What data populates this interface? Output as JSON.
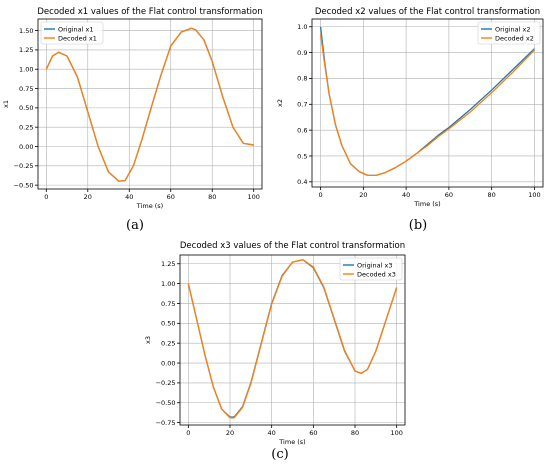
{
  "chart_data": [
    {
      "type": "line",
      "panel": "(a)",
      "title": "Decoded x1 values of the Flat control transformation",
      "xlabel": "Time (s)",
      "ylabel": "x1",
      "xlim": [
        -4,
        104
      ],
      "ylim": [
        -0.55,
        1.65
      ],
      "xticks": [
        0,
        20,
        40,
        60,
        80,
        100
      ],
      "yticks": [
        -0.5,
        -0.25,
        0.0,
        0.25,
        0.5,
        0.75,
        1.0,
        1.25,
        1.5
      ],
      "ytick_labels": [
        "−0.50",
        "−0.25",
        "0.00",
        "0.25",
        "0.50",
        "0.75",
        "1.00",
        "1.25",
        "1.50"
      ],
      "grid": true,
      "legend_position": "top-left",
      "series": [
        {
          "name": "Original x1",
          "color": "#1f77b4",
          "x": [
            0,
            3,
            6,
            10,
            15,
            20,
            25,
            30,
            35,
            38,
            42,
            46,
            50,
            55,
            60,
            65,
            70,
            72,
            76,
            80,
            85,
            90,
            95,
            100
          ],
          "y": [
            1.0,
            1.17,
            1.22,
            1.17,
            0.9,
            0.45,
            0.0,
            -0.33,
            -0.45,
            -0.44,
            -0.25,
            0.08,
            0.45,
            0.9,
            1.3,
            1.48,
            1.53,
            1.51,
            1.38,
            1.1,
            0.65,
            0.25,
            0.04,
            0.02
          ]
        },
        {
          "name": "Decoded x1",
          "color": "#ff7f0e",
          "x": [
            0,
            3,
            6,
            10,
            15,
            20,
            25,
            30,
            35,
            38,
            42,
            46,
            50,
            55,
            60,
            65,
            70,
            72,
            76,
            80,
            85,
            90,
            95,
            100
          ],
          "y": [
            1.0,
            1.17,
            1.22,
            1.17,
            0.9,
            0.45,
            0.0,
            -0.33,
            -0.45,
            -0.44,
            -0.25,
            0.08,
            0.45,
            0.9,
            1.3,
            1.48,
            1.53,
            1.51,
            1.38,
            1.1,
            0.65,
            0.25,
            0.04,
            0.02
          ]
        }
      ]
    },
    {
      "type": "line",
      "panel": "(b)",
      "title": "Decoded x2 values of the Flat control transformation",
      "xlabel": "Time (s)",
      "ylabel": "x2",
      "xlim": [
        -4,
        104
      ],
      "ylim": [
        0.38,
        1.03
      ],
      "xticks": [
        0,
        20,
        40,
        60,
        80,
        100
      ],
      "yticks": [
        0.4,
        0.5,
        0.6,
        0.7,
        0.8,
        0.9,
        1.0
      ],
      "ytick_labels": [
        "0.4",
        "0.5",
        "0.6",
        "0.7",
        "0.8",
        "0.9",
        "1.0"
      ],
      "grid": true,
      "legend_position": "top-right",
      "series": [
        {
          "name": "Original x2",
          "color": "#1f77b4",
          "x": [
            0,
            2,
            4,
            7,
            10,
            14,
            18,
            22,
            26,
            30,
            35,
            40,
            45,
            50,
            55,
            60,
            70,
            80,
            90,
            100
          ],
          "y": [
            1.0,
            0.86,
            0.74,
            0.62,
            0.54,
            0.47,
            0.44,
            0.425,
            0.425,
            0.435,
            0.455,
            0.48,
            0.51,
            0.545,
            0.58,
            0.61,
            0.68,
            0.755,
            0.835,
            0.915
          ]
        },
        {
          "name": "Decoded x2",
          "color": "#ff7f0e",
          "x": [
            0,
            2,
            4,
            7,
            10,
            14,
            18,
            22,
            26,
            30,
            35,
            40,
            45,
            50,
            55,
            60,
            70,
            80,
            90,
            100
          ],
          "y": [
            0.97,
            0.85,
            0.74,
            0.62,
            0.54,
            0.47,
            0.44,
            0.425,
            0.425,
            0.435,
            0.455,
            0.48,
            0.51,
            0.54,
            0.575,
            0.605,
            0.67,
            0.745,
            0.825,
            0.91
          ]
        }
      ]
    },
    {
      "type": "line",
      "panel": "(c)",
      "title": "Decoded x3 values of the Flat control transformation",
      "xlabel": "Time (s)",
      "ylabel": "x3",
      "xlim": [
        -4,
        104
      ],
      "ylim": [
        -0.78,
        1.36
      ],
      "xticks": [
        0,
        20,
        40,
        60,
        80,
        100
      ],
      "yticks": [
        -0.75,
        -0.5,
        -0.25,
        0.0,
        0.25,
        0.5,
        0.75,
        1.0,
        1.25
      ],
      "ytick_labels": [
        "−0.75",
        "−0.50",
        "−0.25",
        "0.00",
        "0.25",
        "0.50",
        "0.75",
        "1.00",
        "1.25"
      ],
      "grid": true,
      "legend_position": "top-right",
      "series": [
        {
          "name": "Original x3",
          "color": "#1f77b4",
          "x": [
            0,
            4,
            8,
            12,
            16,
            20,
            22,
            26,
            30,
            35,
            40,
            45,
            50,
            55,
            60,
            65,
            70,
            75,
            80,
            83,
            86,
            90,
            95,
            100
          ],
          "y": [
            1.0,
            0.55,
            0.1,
            -0.3,
            -0.58,
            -0.68,
            -0.68,
            -0.55,
            -0.25,
            0.25,
            0.75,
            1.1,
            1.27,
            1.3,
            1.2,
            0.95,
            0.55,
            0.15,
            -0.1,
            -0.13,
            -0.08,
            0.15,
            0.55,
            0.95
          ]
        },
        {
          "name": "Decoded x3",
          "color": "#ff7f0e",
          "x": [
            0,
            4,
            8,
            12,
            16,
            20,
            22,
            26,
            30,
            35,
            40,
            45,
            50,
            55,
            60,
            65,
            70,
            75,
            80,
            83,
            86,
            90,
            95,
            100
          ],
          "y": [
            1.0,
            0.55,
            0.1,
            -0.3,
            -0.58,
            -0.69,
            -0.69,
            -0.56,
            -0.26,
            0.24,
            0.74,
            1.09,
            1.27,
            1.3,
            1.21,
            0.96,
            0.56,
            0.16,
            -0.1,
            -0.13,
            -0.08,
            0.15,
            0.55,
            0.95
          ]
        }
      ]
    }
  ]
}
